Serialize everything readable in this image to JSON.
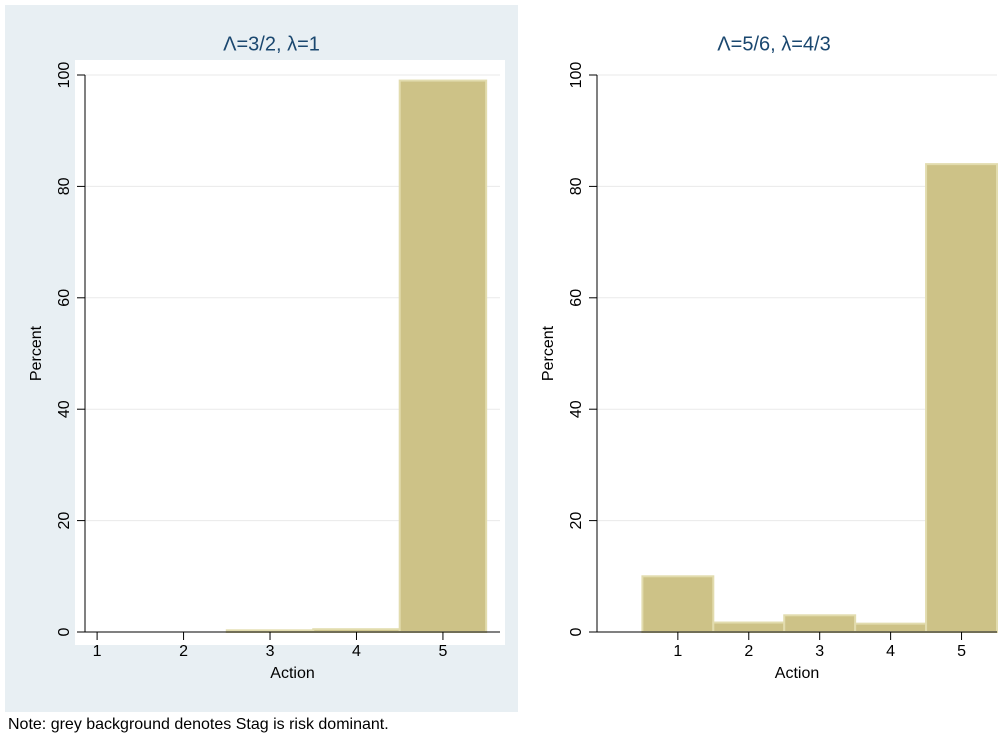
{
  "chart_data": [
    {
      "type": "histogram",
      "title": "Λ=3/2, λ=1",
      "x_label": "Action",
      "y_label": "Percent",
      "bins": [
        0.5,
        1.5,
        2.5,
        3.5,
        4.5,
        5.5
      ],
      "values": [
        0,
        0,
        0.3,
        0.5,
        99
      ],
      "color": "#cdc287",
      "xlim": [
        0.86,
        5.66
      ],
      "ylim": [
        0,
        100
      ],
      "xticks": [
        1,
        2,
        3,
        4,
        5
      ],
      "yticks": [
        0,
        20,
        40,
        60,
        80,
        100
      ],
      "grid": true,
      "background": "#e8eff3"
    },
    {
      "type": "histogram",
      "title": "Λ=5/6, λ=4/3",
      "x_label": "Action",
      "y_label": "Percent",
      "bins": [
        0.5,
        1.5,
        2.5,
        3.5,
        4.5,
        5.5
      ],
      "values": [
        10,
        1.7,
        3,
        1.5,
        84
      ],
      "color": "#cdc287",
      "xlim": [
        -0.14,
        5.5
      ],
      "ylim": [
        0,
        100
      ],
      "xticks": [
        1,
        2,
        3,
        4,
        5
      ],
      "yticks": [
        0,
        20,
        40,
        60,
        80,
        100
      ],
      "grid": true,
      "background": "#ffffff"
    }
  ],
  "note": "Note: grey background denotes Stag is risk dominant."
}
